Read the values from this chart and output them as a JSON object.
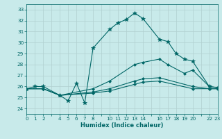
{
  "xlabel": "Humidex (Indice chaleur)",
  "background_color": "#c8eaea",
  "grid_color": "#b0d0d0",
  "line_color": "#006666",
  "xlim": [
    0,
    23
  ],
  "ylim": [
    23.5,
    33.5
  ],
  "yticks": [
    24,
    25,
    26,
    27,
    28,
    29,
    30,
    31,
    32,
    33
  ],
  "xtick_positions": [
    0,
    1,
    2,
    3,
    4,
    5,
    6,
    7,
    8,
    9,
    10,
    11,
    12,
    13,
    14,
    15,
    16,
    17,
    18,
    19,
    20,
    21,
    22,
    23
  ],
  "xtick_labels": [
    "0",
    "1",
    "2",
    "",
    "4",
    "5",
    "6",
    "7",
    "8",
    "",
    "10",
    "11",
    "12",
    "13",
    "14",
    "",
    "16",
    "17",
    "18",
    "19",
    "20",
    "",
    "22",
    "23"
  ],
  "lines": [
    {
      "x": [
        0,
        1,
        2,
        4,
        5,
        6,
        7,
        8,
        10,
        11,
        12,
        13,
        14,
        16,
        17,
        18,
        19,
        20,
        22,
        23
      ],
      "y": [
        25.8,
        26.0,
        26.0,
        25.2,
        24.7,
        26.3,
        24.5,
        29.5,
        31.2,
        31.8,
        32.1,
        32.7,
        32.2,
        30.3,
        30.1,
        29.0,
        28.5,
        28.3,
        26.0,
        25.9
      ],
      "marker": "*",
      "markersize": 4
    },
    {
      "x": [
        0,
        2,
        4,
        8,
        10,
        13,
        14,
        16,
        17,
        19,
        20,
        22,
        23
      ],
      "y": [
        25.8,
        25.8,
        25.2,
        25.8,
        26.5,
        28.0,
        28.2,
        28.5,
        28.0,
        27.2,
        27.5,
        26.0,
        25.9
      ],
      "marker": "D",
      "markersize": 2
    },
    {
      "x": [
        0,
        2,
        4,
        8,
        10,
        13,
        14,
        16,
        20,
        22,
        23
      ],
      "y": [
        25.8,
        25.8,
        25.2,
        25.5,
        25.8,
        26.5,
        26.7,
        26.8,
        26.0,
        25.8,
        25.8
      ],
      "marker": "D",
      "markersize": 2
    },
    {
      "x": [
        0,
        2,
        4,
        8,
        10,
        13,
        14,
        16,
        20,
        22,
        23
      ],
      "y": [
        25.8,
        25.8,
        25.2,
        25.4,
        25.6,
        26.2,
        26.4,
        26.5,
        25.8,
        25.8,
        25.8
      ],
      "marker": "D",
      "markersize": 2
    }
  ]
}
